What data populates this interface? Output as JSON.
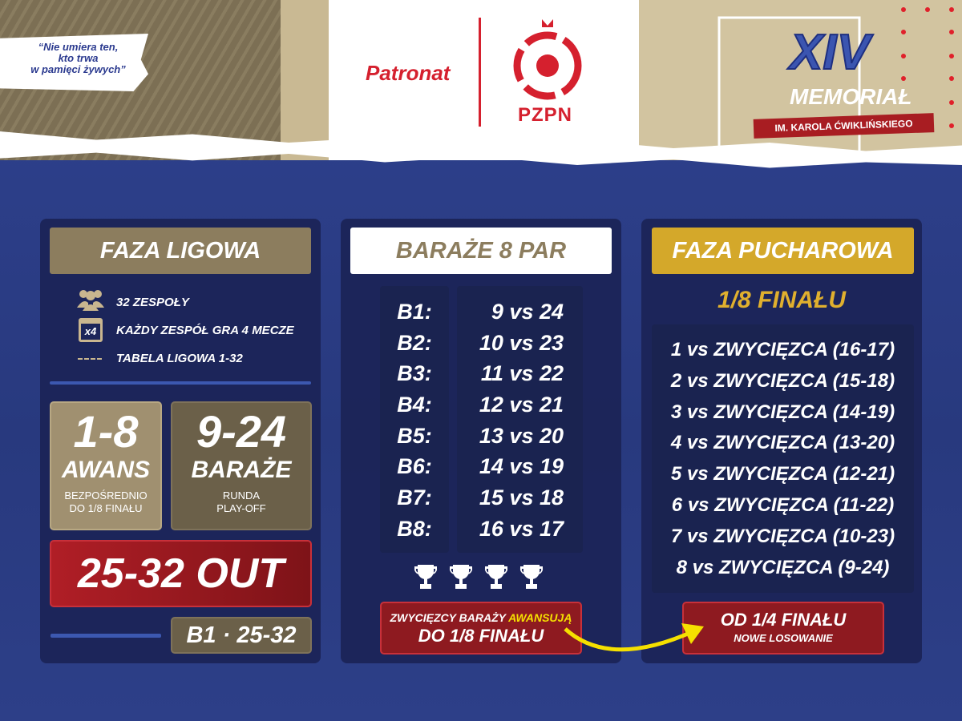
{
  "header": {
    "quote": [
      "“Nie umiera ten,",
      "kto trwa",
      "w pamięci żywych”"
    ],
    "patronat": "Patronat",
    "pzpn": "PZPN",
    "memorial_number": "XIV",
    "memorial_title": "MEMORIAŁ",
    "memorial_subtitle": "IM. KAROLA ĆWIKLIŃSKIEGO"
  },
  "colors": {
    "navy": "#28397e",
    "tan": "#8c7d5e",
    "gold": "#d4a82a",
    "red": "#a81d22",
    "yellow": "#f5e000"
  },
  "league": {
    "title": "FAZA LIGOWA",
    "features": [
      {
        "icon": "people-icon",
        "text": "32 ZESPOŁY"
      },
      {
        "icon": "calendar-x4-icon",
        "icon_text": "x4",
        "text": "KAŻDY ZESPÓŁ GRA 4 MECZE"
      },
      {
        "icon": "dashed-line-icon",
        "text": "TABELA LIGOWA 1-32"
      }
    ],
    "advance": {
      "range": "1-8",
      "label": "AWANS",
      "sub": [
        "BEZPOŚREDNIO",
        "DO 1/8 FINAŁU"
      ]
    },
    "playoff": {
      "range": "9-24",
      "label": "BARAŻE",
      "sub": [
        "RUNDA",
        "PLAY-OFF"
      ]
    },
    "out": "25-32 OUT",
    "b1_label": "B1 · 25-32"
  },
  "playoffs": {
    "title": "BARAŻE 8 PAR",
    "pairs": [
      {
        "id": "B1:",
        "match": "9 vs 24"
      },
      {
        "id": "B2:",
        "match": "10 vs 23"
      },
      {
        "id": "B3:",
        "match": "11 vs 22"
      },
      {
        "id": "B4:",
        "match": "12 vs 21"
      },
      {
        "id": "B5:",
        "match": "13 vs 20"
      },
      {
        "id": "B6:",
        "match": "14 vs 19"
      },
      {
        "id": "B7:",
        "match": "15 vs 18"
      },
      {
        "id": "B8:",
        "match": "16 vs 17"
      }
    ],
    "trophy_count": 4,
    "note_prefix": "ZWYCIĘZCY BARAŻY ",
    "note_highlight": "AWANSUJĄ",
    "note_line2": "DO 1/8 FINAŁU"
  },
  "cup": {
    "title": "FAZA PUCHAROWA",
    "round": "1/8 FINAŁU",
    "matches": [
      "1 vs ZWYCIĘZCA (16-17)",
      "2 vs ZWYCIĘZCA (15-18)",
      "3 vs ZWYCIĘZCA (14-19)",
      "4 vs ZWYCIĘZCA (13-20)",
      "5 vs ZWYCIĘZCA (12-21)",
      "6 vs ZWYCIĘZCA (11-22)",
      "7 vs ZWYCIĘZCA (10-23)",
      "8 vs ZWYCIĘZCA (9-24)"
    ],
    "note_line1": "OD 1/4 FINAŁU",
    "note_line2": "NOWE LOSOWANIE"
  }
}
